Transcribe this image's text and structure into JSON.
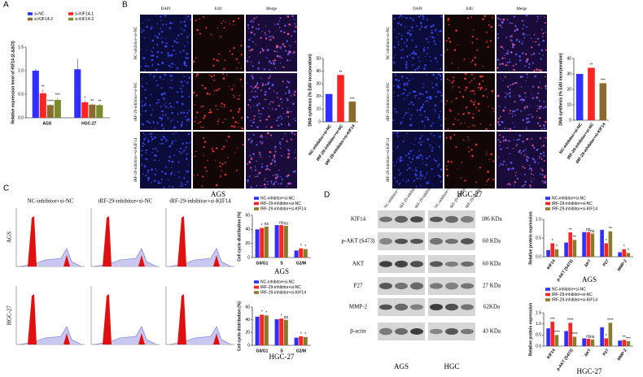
{
  "panel_labels": [
    "A",
    "B",
    "C",
    "D"
  ],
  "edu_panels": [
    {
      "caption": "AGS",
      "columns": [
        "DAPI",
        "EdU",
        "Merge"
      ],
      "rows": [
        "NC-inhibitor+si-NC",
        "tRF-29-inhibitor+si-NC",
        "tRF-29-inhibitor+si-KIF14"
      ]
    },
    {
      "caption": "HGC-27",
      "columns": [
        "DAPI",
        "EdU",
        "Merge"
      ],
      "rows": [
        "NC-inhibitor+si-NC",
        "tRF-29-inhibitor+si-NC",
        "tRF-29-inhibitor+si-KIF14"
      ]
    }
  ],
  "flow_panel": {
    "columns": [
      "NC-inhibitor+si-NC",
      "tRF-29-inhibitor+si-NC",
      "tRF-29-inhibitor+si-KIF14"
    ],
    "rows": [
      "AGS",
      "HGC-27"
    ]
  },
  "western_blot": {
    "columns": [
      "NC-inhibitor+si-NC",
      "tRF-29-inhibitor+si-NC",
      "tRF-29-inhibitor+si-KIF14",
      "NC-inhibitor+si-NC",
      "tRF-29-inhibitor+si-NC",
      "tRF-29-inhibitor+si-KIF14"
    ],
    "proteins": [
      "KIF14",
      "p-AKT (S473)",
      "AKT",
      "P27",
      "MMP-2",
      "β-actin"
    ],
    "sizes": [
      "186 KDa",
      "60 KDa",
      "60 KDa",
      "27 KDa",
      "62KDa",
      "43 KDa"
    ],
    "captions": [
      "AGS",
      "HGC"
    ]
  },
  "chart_data": [
    {
      "type": "bar",
      "ylabel": "Relative expression level of KIF14 (2-ΔΔCt)",
      "categories": [
        "AGS",
        "HGC-27"
      ],
      "series": [
        {
          "name": "si-NC",
          "color": "#2f2fff",
          "values": [
            1.0,
            1.03
          ],
          "errors": [
            0.04,
            0.22
          ],
          "significance": [
            null,
            null
          ]
        },
        {
          "name": "si-KIF14-1",
          "color": "#ff2424",
          "values": [
            0.52,
            0.33
          ],
          "errors": [
            0.08,
            0.03
          ],
          "significance": [
            "**",
            "*"
          ]
        },
        {
          "name": "si-KIF14-2",
          "color": "#8b6a30",
          "values": [
            0.27,
            0.28
          ],
          "errors": [
            0.02,
            0.02
          ],
          "significance": [
            "****",
            "**"
          ]
        },
        {
          "name": "si-KIF14-3",
          "color": "#7b8a2c",
          "values": [
            0.38,
            0.27
          ],
          "errors": [
            0.05,
            0.02
          ],
          "significance": [
            "***",
            "**"
          ]
        }
      ],
      "ylim": [
        0,
        1.5
      ],
      "yticks": [
        {
          "value": 0,
          "label": "0.0"
        },
        {
          "value": 0.5,
          "label": "0.5"
        },
        {
          "value": 1,
          "label": "1.0"
        },
        {
          "value": 1.5,
          "label": "1.5"
        }
      ]
    },
    {
      "type": "bar",
      "ylabel": "DNA synthesis (% EdU incorporation)",
      "categories": [
        "NC-inhibitor+si-NC",
        "tRF-29-inhibitor+si-NC",
        "tRF-29-inhibitor+si-KIF14"
      ],
      "values": [
        22,
        37,
        16
      ],
      "colors": [
        "#2f2fff",
        "#ff2424",
        "#8b6a30"
      ],
      "significance": [
        null,
        "**",
        "***"
      ],
      "ylim": [
        0,
        50
      ],
      "yticks": [
        0,
        10,
        20,
        30,
        40,
        50
      ]
    },
    {
      "type": "bar",
      "ylabel": "DNA synthesis (% EdU incorporation)",
      "categories": [
        "NC-inhibitor+si-NC",
        "tRF-29-inhibitor+si-NC",
        "tRF-29-inhibitor+si-KIF14"
      ],
      "values": [
        30,
        34,
        24
      ],
      "colors": [
        "#2f2fff",
        "#ff2424",
        "#8b6a30"
      ],
      "significance": [
        null,
        "**",
        "***"
      ],
      "ylim": [
        0,
        40
      ],
      "yticks": [
        0,
        10,
        20,
        30,
        40
      ]
    },
    {
      "type": "bar",
      "ylabel": "Cell cycle distribution (%)",
      "caption": "AGS",
      "categories": [
        "G0/G1",
        "S",
        "G2/M"
      ],
      "series": [
        {
          "name": "NC-inhibitor+si-NC",
          "color": "#2f2fff",
          "values": [
            40,
            46,
            10
          ]
        },
        {
          "name": "tRF-29-inhibitor+si-NC",
          "color": "#ff2424",
          "values": [
            42,
            46,
            13
          ],
          "significance": [
            "*",
            "ns",
            "*"
          ]
        },
        {
          "name": "tRF-29-inhibitor+si-KIF14",
          "color": "#8b7a2a",
          "values": [
            44,
            45,
            12
          ],
          "significance": [
            "ns",
            "ns",
            "*"
          ]
        }
      ],
      "ylim": [
        0,
        60
      ],
      "yticks": [
        0,
        20,
        40,
        60
      ]
    },
    {
      "type": "bar",
      "ylabel": "Cell cycle distribution (%)",
      "caption": "HGC-27",
      "categories": [
        "G0/G1",
        "S",
        "G2/M"
      ],
      "series": [
        {
          "name": "NC-inhibitor+si-NC",
          "color": "#2f2fff",
          "values": [
            45,
            41,
            12
          ]
        },
        {
          "name": "tRF-29-inhibitor+si-NC",
          "color": "#ff2424",
          "values": [
            48,
            42,
            14
          ],
          "significance": [
            "*",
            "*",
            "*"
          ]
        },
        {
          "name": "tRF-29-inhibitor+si-KIF14",
          "color": "#8b7a2a",
          "values": [
            47,
            40,
            13
          ],
          "significance": [
            "*",
            "ns",
            "*"
          ]
        }
      ],
      "ylim": [
        0,
        60
      ],
      "yticks": [
        0,
        20,
        40,
        60
      ]
    },
    {
      "type": "bar",
      "ylabel": "Relative protein expression",
      "caption": "AGS",
      "categories": [
        "KIF14",
        "p-AKT (S473)",
        "AKT",
        "P27",
        "MMP-2"
      ],
      "series": [
        {
          "name": "NC-inhibitor+si-NC",
          "color": "#2f2fff",
          "values": [
            0.18,
            0.38,
            0.66,
            0.72,
            0.12
          ]
        },
        {
          "name": "tRF-29-inhibitor+si-NC",
          "color": "#ff2424",
          "values": [
            0.36,
            0.65,
            0.66,
            0.36,
            0.2
          ],
          "significance": [
            "*",
            "**",
            "ns",
            "*",
            "*"
          ]
        },
        {
          "name": "tRF-29-inhibitor+si-KIF14",
          "color": "#8b7a2a",
          "values": [
            0.2,
            0.45,
            0.62,
            0.68,
            0.1
          ],
          "significance": [
            "*",
            "**",
            "ns",
            "**",
            "*"
          ]
        }
      ],
      "ylim": [
        0,
        1
      ],
      "yticks": [
        {
          "value": 0,
          "label": "0.0"
        },
        {
          "value": 0.5,
          "label": "0.5"
        },
        {
          "value": 1,
          "label": "1.0"
        }
      ]
    },
    {
      "type": "bar",
      "ylabel": "Relative protein expression",
      "caption": "HGC-27",
      "categories": [
        "KIF14",
        "p-AKT (S473)",
        "AKT",
        "P27",
        "MMP-2"
      ],
      "series": [
        {
          "name": "NC-inhibitor+si-NC",
          "color": "#2f2fff",
          "values": [
            0.8,
            0.68,
            0.35,
            0.85,
            0.25
          ]
        },
        {
          "name": "tRF-29-inhibitor+si-NC",
          "color": "#ff2424",
          "values": [
            1.1,
            1.05,
            0.33,
            0.35,
            0.28
          ],
          "significance": [
            "***",
            "****",
            "ns",
            "*",
            "**"
          ]
        },
        {
          "name": "tRF-29-inhibitor+si-KIF14",
          "color": "#8b7a2a",
          "values": [
            0.5,
            0.42,
            0.3,
            1.05,
            0.22
          ],
          "significance": [
            "****",
            "****",
            "ns",
            "****",
            "***"
          ]
        }
      ],
      "ylim": [
        0,
        1.5
      ],
      "yticks": [
        {
          "value": 0,
          "label": "0.0"
        },
        {
          "value": 0.5,
          "label": "0.5"
        },
        {
          "value": 1,
          "label": "1.0"
        },
        {
          "value": 1.5,
          "label": "1.5"
        }
      ]
    }
  ]
}
